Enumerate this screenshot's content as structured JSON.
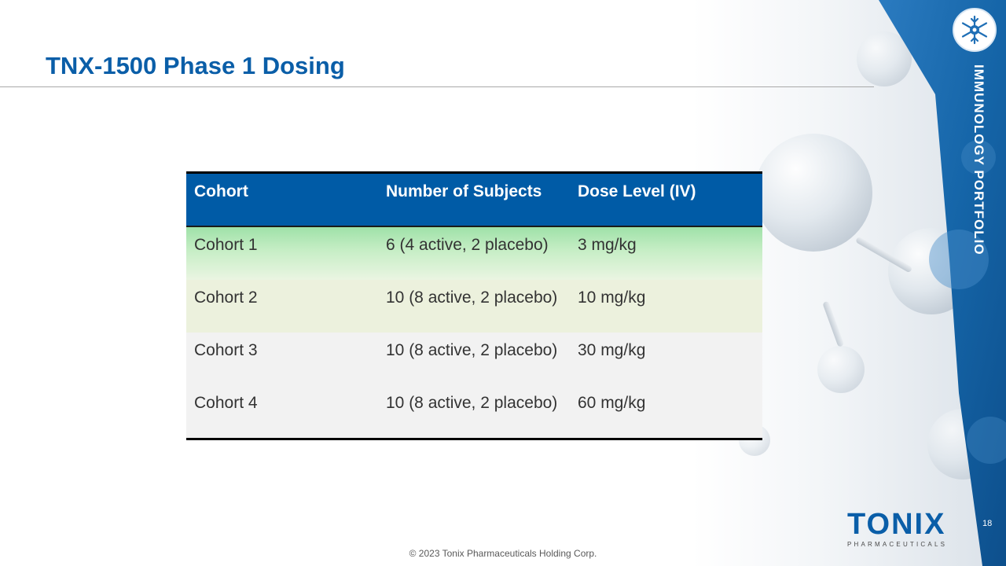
{
  "slide": {
    "title": "TNX-1500 Phase 1 Dosing",
    "side_label": "IMMUNOLOGY PORTFOLIO",
    "page_number": "18",
    "footer": "© 2023 Tonix Pharmaceuticals Holding Corp."
  },
  "logo": {
    "word": "TONIX",
    "sub": "PHARMACEUTICALS"
  },
  "colors": {
    "brand_blue": "#0a5ea8",
    "header_blue": "#005ba6",
    "band_blue": "#1565a8"
  },
  "icons": {
    "badge": "snowflake-molecule-icon"
  },
  "table": {
    "headers": [
      "Cohort",
      "Number of Subjects",
      "Dose Level (IV)"
    ],
    "rows": [
      [
        "Cohort 1",
        "6 (4 active, 2 placebo)",
        "3 mg/kg"
      ],
      [
        "Cohort 2",
        "10 (8 active, 2 placebo)",
        "10 mg/kg"
      ],
      [
        "Cohort 3",
        "10 (8 active, 2 placebo)",
        "30 mg/kg"
      ],
      [
        "Cohort 4",
        "10 (8 active, 2 placebo)",
        "60 mg/kg"
      ]
    ]
  }
}
